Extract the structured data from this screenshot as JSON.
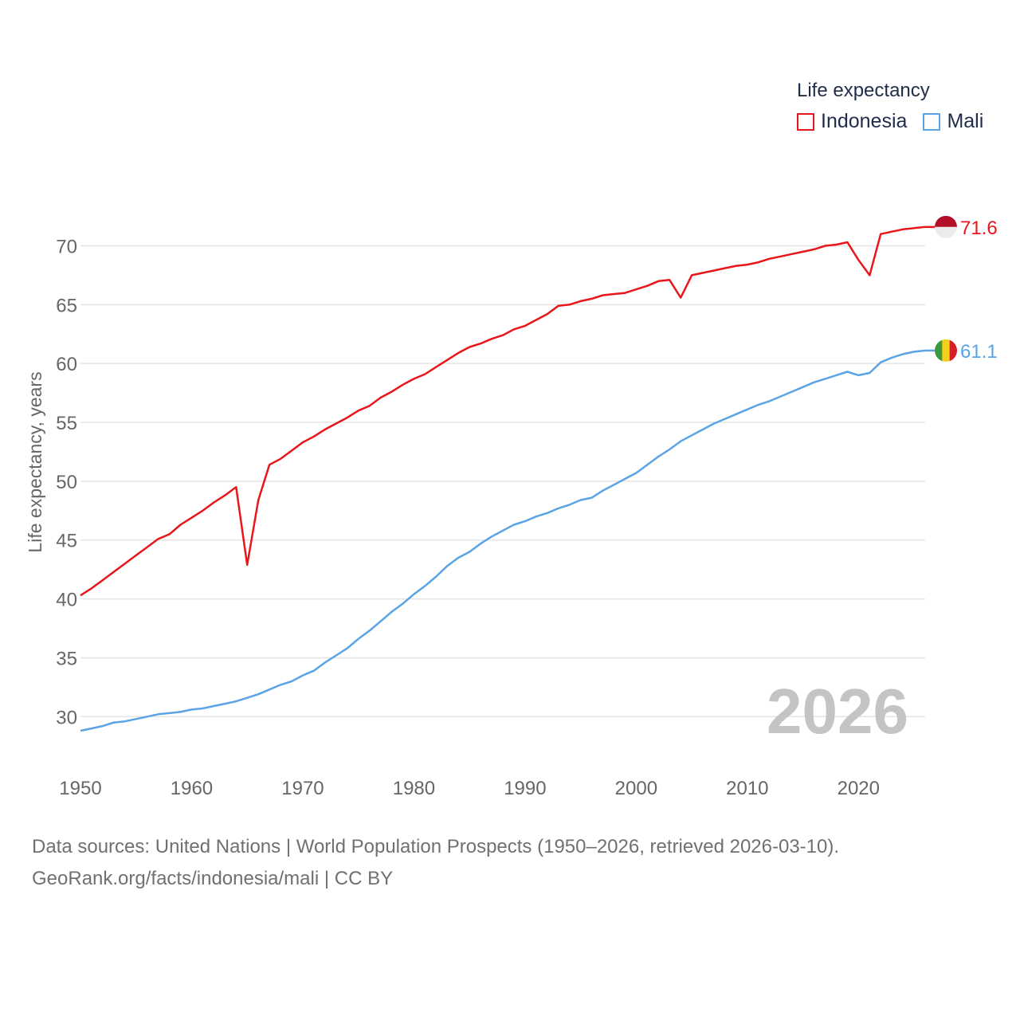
{
  "chart_data": {
    "type": "line",
    "legend_title": "Life expectancy",
    "ylabel": "Life expectancy, years",
    "xlabel": "",
    "xlim": [
      1950,
      2026
    ],
    "ylim": [
      26.5,
      74.5
    ],
    "x_ticks": [
      1950,
      1960,
      1970,
      1980,
      1990,
      2000,
      2010,
      2020
    ],
    "y_ticks": [
      30,
      35,
      40,
      45,
      50,
      55,
      60,
      65,
      70
    ],
    "year_label": "2026",
    "grid": true,
    "legend_position": "top-right",
    "series": [
      {
        "name": "Indonesia",
        "color": "#e8161a",
        "end_label": "71.6",
        "flag_colors": [
          "#b30f2b",
          "#ececec"
        ],
        "x": [
          1950,
          1951,
          1952,
          1953,
          1954,
          1955,
          1956,
          1957,
          1958,
          1959,
          1960,
          1961,
          1962,
          1963,
          1964,
          1965,
          1966,
          1967,
          1968,
          1969,
          1970,
          1971,
          1972,
          1973,
          1974,
          1975,
          1976,
          1977,
          1978,
          1979,
          1980,
          1981,
          1982,
          1983,
          1984,
          1985,
          1986,
          1987,
          1988,
          1989,
          1990,
          1991,
          1992,
          1993,
          1994,
          1995,
          1996,
          1997,
          1998,
          1999,
          2000,
          2001,
          2002,
          2003,
          2004,
          2005,
          2006,
          2007,
          2008,
          2009,
          2010,
          2011,
          2012,
          2013,
          2014,
          2015,
          2016,
          2017,
          2018,
          2019,
          2020,
          2021,
          2022,
          2023,
          2024,
          2025,
          2026
        ],
        "values": [
          40.3,
          40.9,
          41.6,
          42.3,
          43.0,
          43.7,
          44.4,
          45.1,
          45.5,
          46.3,
          46.9,
          47.5,
          48.2,
          48.8,
          49.5,
          42.9,
          48.4,
          51.4,
          51.9,
          52.6,
          53.3,
          53.8,
          54.4,
          54.9,
          55.4,
          56.0,
          56.4,
          57.1,
          57.6,
          58.2,
          58.7,
          59.1,
          59.7,
          60.3,
          60.9,
          61.4,
          61.7,
          62.1,
          62.4,
          62.9,
          63.2,
          63.7,
          64.2,
          64.9,
          65.0,
          65.3,
          65.5,
          65.8,
          65.9,
          66.0,
          66.3,
          66.6,
          67.0,
          67.1,
          65.6,
          67.5,
          67.7,
          67.9,
          68.1,
          68.3,
          68.4,
          68.6,
          68.9,
          69.1,
          69.3,
          69.5,
          69.7,
          70.0,
          70.1,
          70.3,
          68.8,
          67.5,
          71.0,
          71.2,
          71.4,
          71.5,
          71.6
        ]
      },
      {
        "name": "Mali",
        "color": "#5aa4e6",
        "end_label": "61.1",
        "flag_colors": [
          "#3d9a3a",
          "#f5d01e",
          "#d41f26"
        ],
        "x": [
          1950,
          1951,
          1952,
          1953,
          1954,
          1955,
          1956,
          1957,
          1958,
          1959,
          1960,
          1961,
          1962,
          1963,
          1964,
          1965,
          1966,
          1967,
          1968,
          1969,
          1970,
          1971,
          1972,
          1973,
          1974,
          1975,
          1976,
          1977,
          1978,
          1979,
          1980,
          1981,
          1982,
          1983,
          1984,
          1985,
          1986,
          1987,
          1988,
          1989,
          1990,
          1991,
          1992,
          1993,
          1994,
          1995,
          1996,
          1997,
          1998,
          1999,
          2000,
          2001,
          2002,
          2003,
          2004,
          2005,
          2006,
          2007,
          2008,
          2009,
          2010,
          2011,
          2012,
          2013,
          2014,
          2015,
          2016,
          2017,
          2018,
          2019,
          2020,
          2021,
          2022,
          2023,
          2024,
          2025,
          2026
        ],
        "values": [
          28.8,
          29.0,
          29.2,
          29.5,
          29.6,
          29.8,
          30.0,
          30.2,
          30.3,
          30.4,
          30.6,
          30.7,
          30.9,
          31.1,
          31.3,
          31.6,
          31.9,
          32.3,
          32.7,
          33.0,
          33.5,
          33.9,
          34.6,
          35.2,
          35.8,
          36.6,
          37.3,
          38.1,
          38.9,
          39.6,
          40.4,
          41.1,
          41.9,
          42.8,
          43.5,
          44.0,
          44.7,
          45.3,
          45.8,
          46.3,
          46.6,
          47.0,
          47.3,
          47.7,
          48.0,
          48.4,
          48.6,
          49.2,
          49.7,
          50.2,
          50.7,
          51.4,
          52.1,
          52.7,
          53.4,
          53.9,
          54.4,
          54.9,
          55.3,
          55.7,
          56.1,
          56.5,
          56.8,
          57.2,
          57.6,
          58.0,
          58.4,
          58.7,
          59.0,
          59.3,
          59.0,
          59.2,
          60.1,
          60.5,
          60.8,
          61.0,
          61.1
        ]
      }
    ]
  },
  "source": {
    "line1": "Data sources: United Nations | World Population Prospects (1950–2026, retrieved 2026-03-10).",
    "line2": "GeoRank.org/facts/indonesia/mali | CC BY"
  }
}
